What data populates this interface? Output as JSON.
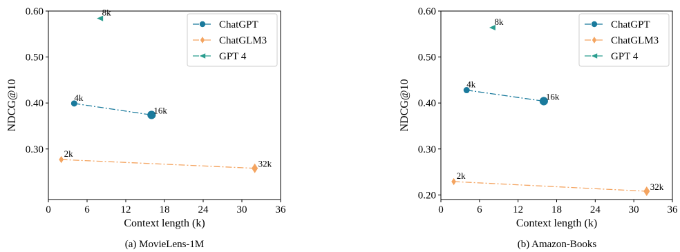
{
  "chart_data": [
    {
      "type": "line",
      "caption": "(a)  MovieLens-1M",
      "xlabel": "Context length (k)",
      "ylabel": "NDCG@10",
      "xlim": [
        0,
        36
      ],
      "ylim": [
        0.19,
        0.6
      ],
      "xticks": [
        0,
        6,
        12,
        18,
        24,
        30,
        36
      ],
      "yticks": [
        0.3,
        0.4,
        0.5,
        0.6
      ],
      "ytick_labels": [
        "0.30",
        "0.40",
        "0.50",
        "0.60"
      ],
      "grid": false,
      "legend_position": "top-right",
      "series": [
        {
          "name": "ChatGPT",
          "color": "#1a7a9c",
          "marker": "circle",
          "linestyle": "dashdot",
          "points": [
            {
              "x": 4,
              "y": 0.399,
              "label": "4k"
            },
            {
              "x": 16,
              "y": 0.374,
              "label": "16k"
            }
          ]
        },
        {
          "name": "ChatGLM3",
          "color": "#f4a460",
          "marker": "diamond",
          "linestyle": "dashdot",
          "points": [
            {
              "x": 2,
              "y": 0.277,
              "label": "2k"
            },
            {
              "x": 32,
              "y": 0.258,
              "label": "32k"
            }
          ]
        },
        {
          "name": "GPT 4",
          "color": "#2a9d8f",
          "marker": "triangle-left",
          "linestyle": "dashdot",
          "points": [
            {
              "x": 8,
              "y": 0.584,
              "label": "8k"
            }
          ]
        }
      ]
    },
    {
      "type": "line",
      "caption": "(b)  Amazon-Books",
      "xlabel": "Context length (k)",
      "ylabel": "NDCG@10",
      "xlim": [
        0,
        36
      ],
      "ylim": [
        0.19,
        0.6
      ],
      "xticks": [
        0,
        6,
        12,
        18,
        24,
        30,
        36
      ],
      "yticks": [
        0.2,
        0.3,
        0.4,
        0.5,
        0.6
      ],
      "ytick_labels": [
        "0.20",
        "0.30",
        "0.40",
        "0.50",
        "0.60"
      ],
      "grid": false,
      "legend_position": "top-right",
      "series": [
        {
          "name": "ChatGPT",
          "color": "#1a7a9c",
          "marker": "circle",
          "linestyle": "dashdot",
          "points": [
            {
              "x": 4,
              "y": 0.428,
              "label": "4k"
            },
            {
              "x": 16,
              "y": 0.404,
              "label": "16k"
            }
          ]
        },
        {
          "name": "ChatGLM3",
          "color": "#f4a460",
          "marker": "diamond",
          "linestyle": "dashdot",
          "points": [
            {
              "x": 2,
              "y": 0.229,
              "label": "2k"
            },
            {
              "x": 32,
              "y": 0.208,
              "label": "32k"
            }
          ]
        },
        {
          "name": "GPT 4",
          "color": "#2a9d8f",
          "marker": "triangle-left",
          "linestyle": "dashdot",
          "points": [
            {
              "x": 8,
              "y": 0.564,
              "label": "8k"
            }
          ]
        }
      ]
    }
  ]
}
